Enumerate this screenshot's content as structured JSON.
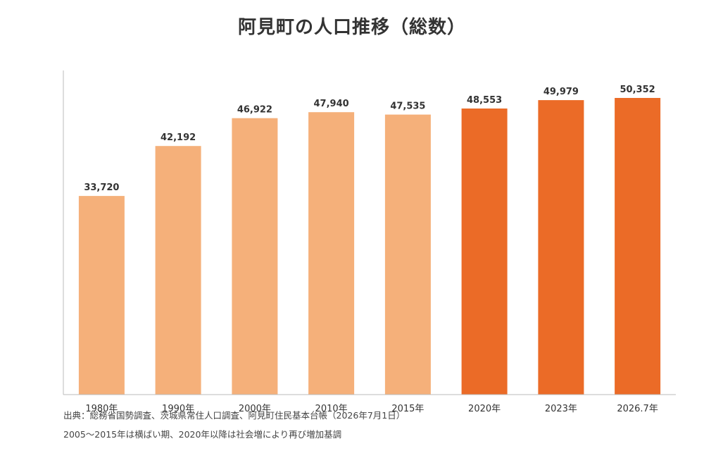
{
  "colors": {
    "past": "#f5b07a",
    "recent": "#eb6b27",
    "axis": "#bbbbbb",
    "text": "#333333"
  },
  "chart_data": {
    "type": "bar",
    "title": "阿見町の人口推移（総数）",
    "xlabel": "",
    "ylabel": "",
    "ylim": [
      0,
      55000
    ],
    "grid": false,
    "legend": "none",
    "categories": [
      "1980年",
      "1990年",
      "2000年",
      "2010年",
      "2015年",
      "2020年",
      "2023年",
      "2026.7年"
    ],
    "values": [
      33720,
      42192,
      46922,
      47940,
      47535,
      48553,
      49979,
      50352
    ],
    "value_labels": [
      "33,720",
      "42,192",
      "46,922",
      "47,940",
      "47,535",
      "48,553",
      "49,979",
      "50,352"
    ],
    "bar_color_groups": [
      "past",
      "past",
      "past",
      "past",
      "past",
      "recent",
      "recent",
      "recent"
    ]
  },
  "notes": {
    "source": "出典：総務省国勢調査、茨城県常住人口調査、阿見町住民基本台帳（2026年7月1日）",
    "remark": "2005〜2015年は横ばい期、2020年以降は社会増により再び増加基調"
  }
}
